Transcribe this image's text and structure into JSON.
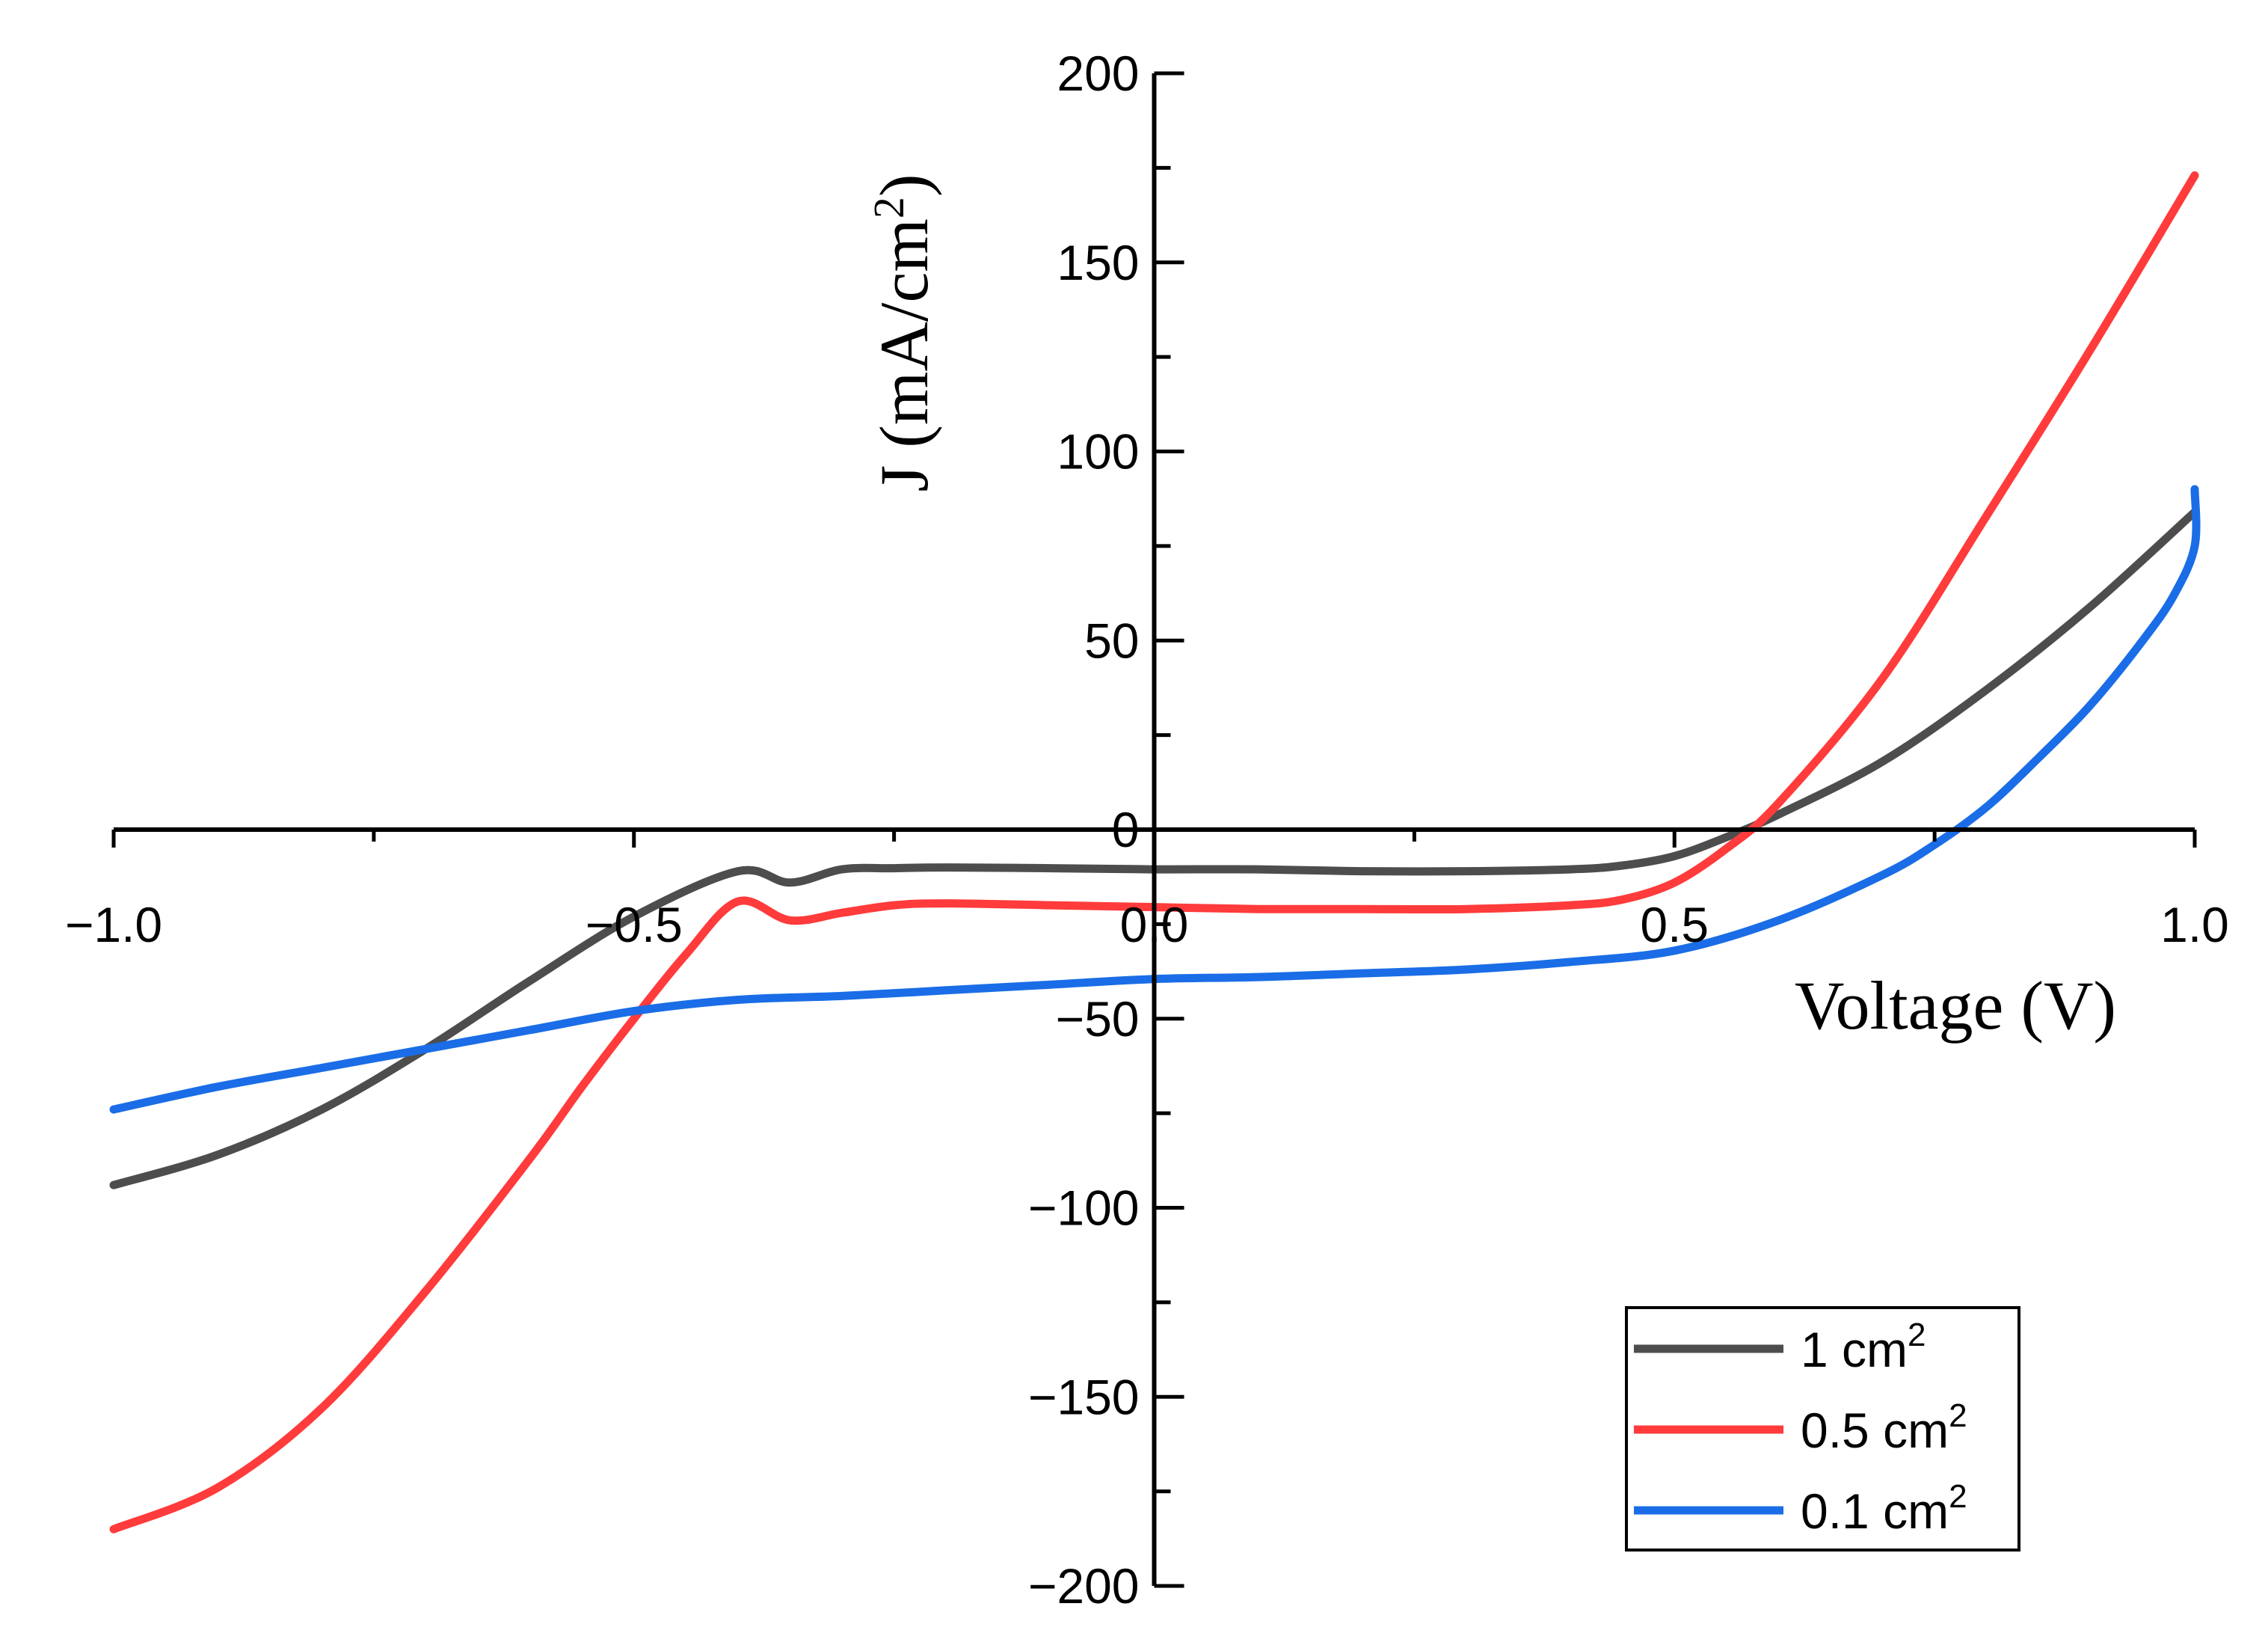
{
  "chart_data": {
    "type": "line",
    "title": "",
    "xlabel": "Voltage (V)",
    "ylabel": "J (mA/cm²)",
    "ylabel_parts": {
      "base": "J (mA/cm",
      "sup": "2",
      "tail": ")"
    },
    "xlim": [
      -1.0,
      1.0
    ],
    "ylim": [
      -200,
      200
    ],
    "x_ticks": [
      -1.0,
      -0.5,
      0.0,
      0.5,
      1.0
    ],
    "x_tick_labels": [
      "−1.0",
      "−0.5",
      "0.0",
      "0.5",
      "1.0"
    ],
    "y_ticks": [
      200,
      150,
      100,
      50,
      0,
      -50,
      -100,
      -150,
      -200
    ],
    "y_tick_labels": [
      "200",
      "150",
      "100",
      "50",
      "0",
      "−50",
      "−100",
      "−150",
      "−200"
    ],
    "grid": false,
    "legend_position": "bottom-right",
    "series": [
      {
        "name": "1 cm2",
        "label_base": "1 cm",
        "label_sup": "2",
        "color": "#4d4d4d",
        "x": [
          -1.0,
          -0.9,
          -0.8,
          -0.7,
          -0.6,
          -0.5,
          -0.4,
          -0.35,
          -0.3,
          -0.25,
          -0.2,
          -0.1,
          0.0,
          0.1,
          0.2,
          0.3,
          0.4,
          0.45,
          0.5,
          0.55,
          0.6,
          0.7,
          0.8,
          0.9,
          1.0
        ],
        "y": [
          -94,
          -86,
          -74,
          -58,
          -40,
          -23,
          -11,
          -14,
          -10.5,
          -10.2,
          -10,
          -10.2,
          -10.5,
          -10.5,
          -11,
          -11,
          -10.5,
          -9.5,
          -7,
          -2,
          4,
          18,
          37,
          59,
          84
        ]
      },
      {
        "name": "0.5 cm2",
        "label_base": "0.5 cm",
        "label_sup": "2",
        "color": "#ff3b3b",
        "x": [
          -1.0,
          -0.9,
          -0.8,
          -0.7,
          -0.6,
          -0.55,
          -0.5,
          -0.45,
          -0.4,
          -0.35,
          -0.3,
          -0.25,
          -0.2,
          -0.1,
          0.0,
          0.1,
          0.2,
          0.3,
          0.4,
          0.45,
          0.5,
          0.55,
          0.6,
          0.7,
          0.8,
          0.9,
          1.0
        ],
        "y": [
          -185,
          -174,
          -153,
          -122,
          -87,
          -68,
          -50,
          -33,
          -19,
          -24,
          -22,
          -20,
          -19.5,
          -20,
          -20.5,
          -21,
          -21,
          -21,
          -20,
          -18.5,
          -14,
          -5,
          7,
          40,
          83,
          127,
          173
        ]
      },
      {
        "name": "0.1 cm2",
        "label_base": "0.1 cm",
        "label_sup": "2",
        "color": "#1a6de6",
        "x": [
          -1.0,
          -0.9,
          -0.8,
          -0.7,
          -0.6,
          -0.5,
          -0.4,
          -0.3,
          -0.2,
          -0.1,
          0.0,
          0.1,
          0.2,
          0.3,
          0.4,
          0.5,
          0.6,
          0.7,
          0.75,
          0.8,
          0.85,
          0.9,
          0.95,
          0.98,
          1.0,
          1.0
        ],
        "y": [
          -74,
          -68,
          -63,
          -58,
          -53,
          -48,
          -45,
          -44,
          -42.5,
          -41,
          -39.5,
          -39,
          -38,
          -37,
          -35,
          -32,
          -24,
          -12,
          -4,
          6,
          19,
          33,
          50,
          62,
          75,
          90
        ]
      }
    ]
  }
}
